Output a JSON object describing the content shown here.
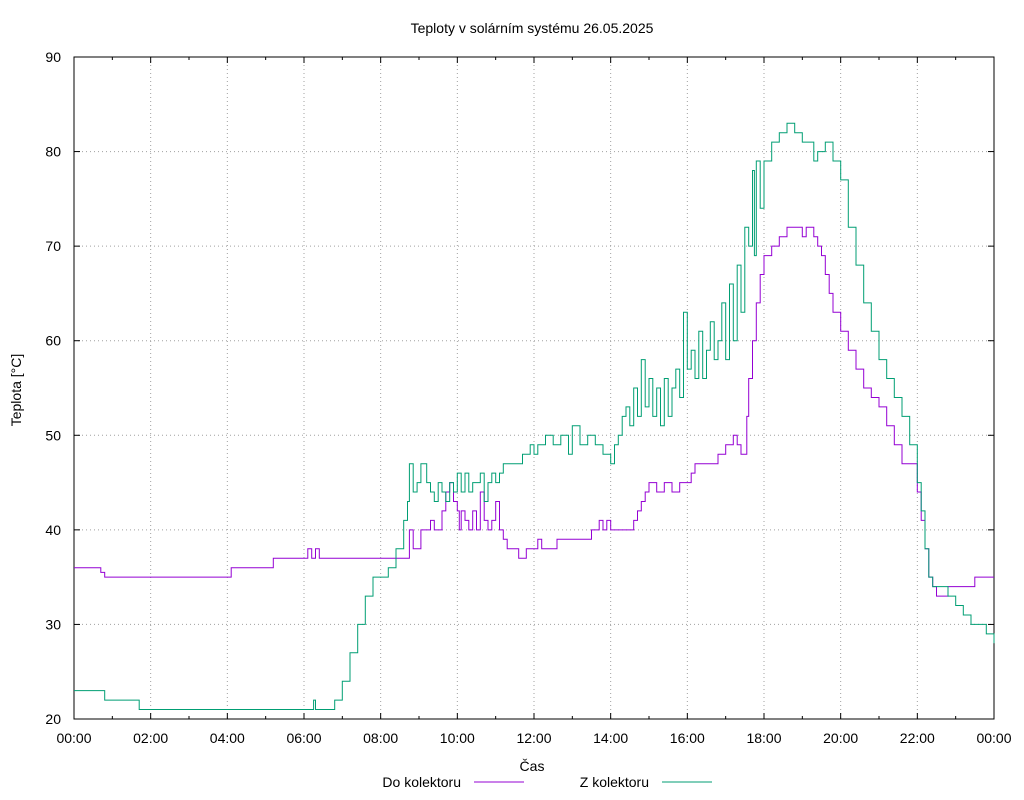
{
  "chart_data": {
    "type": "line",
    "title": "Teploty v solárním systému 26.05.2025",
    "xlabel": "Čas",
    "ylabel": "Teplota [°C]",
    "x_unit": "hours",
    "xlim": [
      0,
      24
    ],
    "ylim": [
      20,
      90
    ],
    "grid": true,
    "legend": "bottom-center",
    "x_ticks": [
      0,
      2,
      4,
      6,
      8,
      10,
      12,
      14,
      16,
      18,
      20,
      22,
      24
    ],
    "x_tick_labels": [
      "00:00",
      "02:00",
      "04:00",
      "06:00",
      "08:00",
      "10:00",
      "12:00",
      "14:00",
      "16:00",
      "18:00",
      "20:00",
      "22:00",
      "00:00"
    ],
    "y_ticks": [
      20,
      30,
      40,
      50,
      60,
      70,
      80,
      90
    ],
    "y_tick_labels": [
      "20",
      "30",
      "40",
      "50",
      "60",
      "70",
      "80",
      "90"
    ],
    "series": [
      {
        "name": "Do kolektoru",
        "color": "#9400d3",
        "points": [
          [
            0,
            36
          ],
          [
            0.6,
            36
          ],
          [
            0.7,
            35.5
          ],
          [
            0.8,
            35
          ],
          [
            1.5,
            35
          ],
          [
            2.0,
            35
          ],
          [
            3.0,
            35
          ],
          [
            4.0,
            35
          ],
          [
            4.1,
            36
          ],
          [
            5.0,
            36
          ],
          [
            5.2,
            37
          ],
          [
            6.0,
            37
          ],
          [
            6.1,
            38
          ],
          [
            6.2,
            37
          ],
          [
            6.3,
            38
          ],
          [
            6.4,
            37
          ],
          [
            7.0,
            37
          ],
          [
            8.0,
            37
          ],
          [
            8.7,
            37
          ],
          [
            8.75,
            40
          ],
          [
            8.85,
            38
          ],
          [
            8.95,
            38
          ],
          [
            9.05,
            40
          ],
          [
            9.2,
            40
          ],
          [
            9.3,
            41
          ],
          [
            9.4,
            40
          ],
          [
            9.6,
            42
          ],
          [
            9.7,
            44
          ],
          [
            9.8,
            45
          ],
          [
            9.9,
            43
          ],
          [
            10.0,
            42
          ],
          [
            10.05,
            40
          ],
          [
            10.1,
            42
          ],
          [
            10.2,
            41
          ],
          [
            10.3,
            40
          ],
          [
            10.4,
            42
          ],
          [
            10.5,
            40
          ],
          [
            10.6,
            44
          ],
          [
            10.7,
            41
          ],
          [
            10.8,
            40
          ],
          [
            10.9,
            41
          ],
          [
            11.0,
            43
          ],
          [
            11.1,
            40
          ],
          [
            11.2,
            39
          ],
          [
            11.3,
            38
          ],
          [
            11.5,
            38
          ],
          [
            11.6,
            37
          ],
          [
            11.8,
            38
          ],
          [
            12.0,
            38
          ],
          [
            12.1,
            39
          ],
          [
            12.2,
            38
          ],
          [
            12.5,
            38
          ],
          [
            12.6,
            39
          ],
          [
            13.0,
            39
          ],
          [
            13.4,
            39
          ],
          [
            13.5,
            40
          ],
          [
            13.6,
            40
          ],
          [
            13.7,
            41
          ],
          [
            13.8,
            40
          ],
          [
            13.9,
            41
          ],
          [
            14.0,
            40
          ],
          [
            14.5,
            40
          ],
          [
            14.6,
            41
          ],
          [
            14.7,
            42
          ],
          [
            14.8,
            43
          ],
          [
            14.9,
            44
          ],
          [
            15.0,
            45
          ],
          [
            15.2,
            44
          ],
          [
            15.4,
            45
          ],
          [
            15.6,
            44
          ],
          [
            15.8,
            45
          ],
          [
            16.0,
            45
          ],
          [
            16.1,
            46
          ],
          [
            16.2,
            47
          ],
          [
            16.5,
            47
          ],
          [
            16.8,
            48
          ],
          [
            16.9,
            48
          ],
          [
            17.0,
            49
          ],
          [
            17.1,
            49
          ],
          [
            17.2,
            50
          ],
          [
            17.3,
            49
          ],
          [
            17.4,
            48
          ],
          [
            17.5,
            48
          ],
          [
            17.55,
            52
          ],
          [
            17.6,
            56
          ],
          [
            17.7,
            60
          ],
          [
            17.8,
            64
          ],
          [
            17.9,
            67
          ],
          [
            18.0,
            69
          ],
          [
            18.2,
            70
          ],
          [
            18.4,
            71
          ],
          [
            18.6,
            72
          ],
          [
            18.8,
            72
          ],
          [
            19.0,
            71
          ],
          [
            19.1,
            72
          ],
          [
            19.2,
            72
          ],
          [
            19.3,
            71
          ],
          [
            19.4,
            70
          ],
          [
            19.5,
            69
          ],
          [
            19.6,
            67
          ],
          [
            19.7,
            65
          ],
          [
            19.8,
            63
          ],
          [
            20.0,
            61
          ],
          [
            20.2,
            59
          ],
          [
            20.4,
            57
          ],
          [
            20.6,
            55
          ],
          [
            20.8,
            54
          ],
          [
            21.0,
            53
          ],
          [
            21.2,
            51
          ],
          [
            21.4,
            49
          ],
          [
            21.6,
            47
          ],
          [
            21.8,
            47
          ],
          [
            22.0,
            44
          ],
          [
            22.1,
            41
          ],
          [
            22.2,
            38
          ],
          [
            22.3,
            35
          ],
          [
            22.4,
            34
          ],
          [
            22.5,
            33
          ],
          [
            22.7,
            33
          ],
          [
            22.8,
            34
          ],
          [
            23.0,
            34
          ],
          [
            23.3,
            34
          ],
          [
            23.5,
            35
          ],
          [
            24.0,
            35
          ]
        ]
      },
      {
        "name": "Z kolektoru",
        "color": "#009e73",
        "points": [
          [
            0,
            23
          ],
          [
            0.8,
            23
          ],
          [
            0.8,
            22
          ],
          [
            1.6,
            22
          ],
          [
            1.7,
            21
          ],
          [
            2.0,
            21
          ],
          [
            3.0,
            21
          ],
          [
            4.0,
            21
          ],
          [
            5.0,
            21
          ],
          [
            6.0,
            21
          ],
          [
            6.2,
            21
          ],
          [
            6.25,
            22
          ],
          [
            6.3,
            21
          ],
          [
            6.5,
            21
          ],
          [
            6.6,
            21
          ],
          [
            6.8,
            22
          ],
          [
            7.0,
            24
          ],
          [
            7.2,
            27
          ],
          [
            7.4,
            30
          ],
          [
            7.6,
            33
          ],
          [
            7.8,
            35
          ],
          [
            8.0,
            35
          ],
          [
            8.2,
            36
          ],
          [
            8.4,
            38
          ],
          [
            8.6,
            41
          ],
          [
            8.7,
            43
          ],
          [
            8.75,
            47
          ],
          [
            8.85,
            44
          ],
          [
            8.95,
            45
          ],
          [
            9.05,
            47
          ],
          [
            9.2,
            45
          ],
          [
            9.3,
            44
          ],
          [
            9.4,
            43
          ],
          [
            9.5,
            45
          ],
          [
            9.6,
            44
          ],
          [
            9.7,
            43
          ],
          [
            9.8,
            45
          ],
          [
            9.9,
            44
          ],
          [
            10.0,
            46
          ],
          [
            10.1,
            44
          ],
          [
            10.2,
            46
          ],
          [
            10.3,
            44
          ],
          [
            10.4,
            45
          ],
          [
            10.5,
            45
          ],
          [
            10.6,
            46
          ],
          [
            10.7,
            43
          ],
          [
            10.8,
            45
          ],
          [
            10.9,
            46
          ],
          [
            11.0,
            45
          ],
          [
            11.1,
            46
          ],
          [
            11.2,
            47
          ],
          [
            11.5,
            47
          ],
          [
            11.7,
            48
          ],
          [
            11.9,
            49
          ],
          [
            12.0,
            48
          ],
          [
            12.1,
            49
          ],
          [
            12.3,
            50
          ],
          [
            12.5,
            49
          ],
          [
            12.7,
            50
          ],
          [
            12.9,
            48
          ],
          [
            13.0,
            51
          ],
          [
            13.2,
            49
          ],
          [
            13.4,
            50
          ],
          [
            13.6,
            49
          ],
          [
            13.8,
            48
          ],
          [
            14.0,
            47
          ],
          [
            14.1,
            49
          ],
          [
            14.2,
            50
          ],
          [
            14.3,
            52
          ],
          [
            14.4,
            53
          ],
          [
            14.5,
            51
          ],
          [
            14.6,
            55
          ],
          [
            14.7,
            52
          ],
          [
            14.8,
            58
          ],
          [
            14.9,
            53
          ],
          [
            15.0,
            56
          ],
          [
            15.1,
            52
          ],
          [
            15.2,
            55
          ],
          [
            15.3,
            51
          ],
          [
            15.4,
            56
          ],
          [
            15.5,
            52
          ],
          [
            15.6,
            55
          ],
          [
            15.7,
            57
          ],
          [
            15.8,
            54
          ],
          [
            15.9,
            63
          ],
          [
            16.0,
            57
          ],
          [
            16.1,
            59
          ],
          [
            16.2,
            56
          ],
          [
            16.3,
            61
          ],
          [
            16.4,
            56
          ],
          [
            16.5,
            59
          ],
          [
            16.6,
            62
          ],
          [
            16.7,
            58
          ],
          [
            16.8,
            60
          ],
          [
            16.9,
            64
          ],
          [
            17.0,
            58
          ],
          [
            17.1,
            66
          ],
          [
            17.2,
            60
          ],
          [
            17.3,
            68
          ],
          [
            17.4,
            63
          ],
          [
            17.5,
            72
          ],
          [
            17.6,
            70
          ],
          [
            17.7,
            78
          ],
          [
            17.75,
            69
          ],
          [
            17.8,
            79
          ],
          [
            17.9,
            74
          ],
          [
            18.0,
            79
          ],
          [
            18.2,
            81
          ],
          [
            18.4,
            82
          ],
          [
            18.6,
            83
          ],
          [
            18.8,
            82
          ],
          [
            19.0,
            81
          ],
          [
            19.2,
            81
          ],
          [
            19.3,
            79
          ],
          [
            19.4,
            80
          ],
          [
            19.6,
            81
          ],
          [
            19.8,
            79
          ],
          [
            20.0,
            77
          ],
          [
            20.2,
            72
          ],
          [
            20.4,
            68
          ],
          [
            20.6,
            64
          ],
          [
            20.8,
            61
          ],
          [
            21.0,
            58
          ],
          [
            21.2,
            56
          ],
          [
            21.4,
            54
          ],
          [
            21.6,
            52
          ],
          [
            21.8,
            49
          ],
          [
            22.0,
            45
          ],
          [
            22.1,
            42
          ],
          [
            22.2,
            38
          ],
          [
            22.3,
            35
          ],
          [
            22.4,
            34
          ],
          [
            22.6,
            34
          ],
          [
            22.8,
            33
          ],
          [
            23.0,
            32
          ],
          [
            23.2,
            31
          ],
          [
            23.4,
            30
          ],
          [
            23.6,
            30
          ],
          [
            23.8,
            29
          ],
          [
            24.0,
            28
          ]
        ]
      }
    ]
  }
}
